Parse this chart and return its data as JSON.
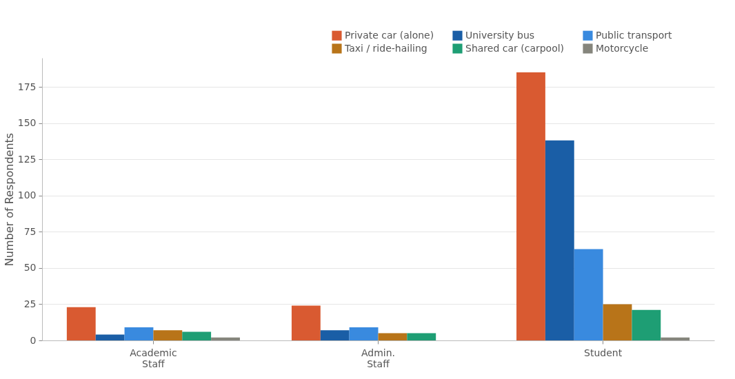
{
  "chart_data": {
    "type": "bar",
    "ylabel": "Number of Respondents",
    "categories": [
      "Academic Staff",
      "Admin. Staff",
      "Student"
    ],
    "series": [
      {
        "name": "Private car (alone)",
        "color": "#d95a31",
        "values": [
          23,
          24,
          185
        ]
      },
      {
        "name": "University bus",
        "color": "#1a5ea6",
        "values": [
          4,
          7,
          138
        ]
      },
      {
        "name": "Public transport",
        "color": "#398adf",
        "values": [
          9,
          9,
          63
        ]
      },
      {
        "name": "Taxi / ride-hailing",
        "color": "#b87419",
        "values": [
          7,
          5,
          25
        ]
      },
      {
        "name": "Shared car (carpool)",
        "color": "#1e9e74",
        "values": [
          6,
          5,
          21
        ]
      },
      {
        "name": "Motorcycle",
        "color": "#85857c",
        "values": [
          2,
          0,
          2
        ]
      }
    ],
    "ylim": [
      0,
      195
    ],
    "yticks": [
      0,
      25,
      50,
      75,
      100,
      125,
      150,
      175
    ],
    "grid": "y",
    "legend": "top right"
  }
}
